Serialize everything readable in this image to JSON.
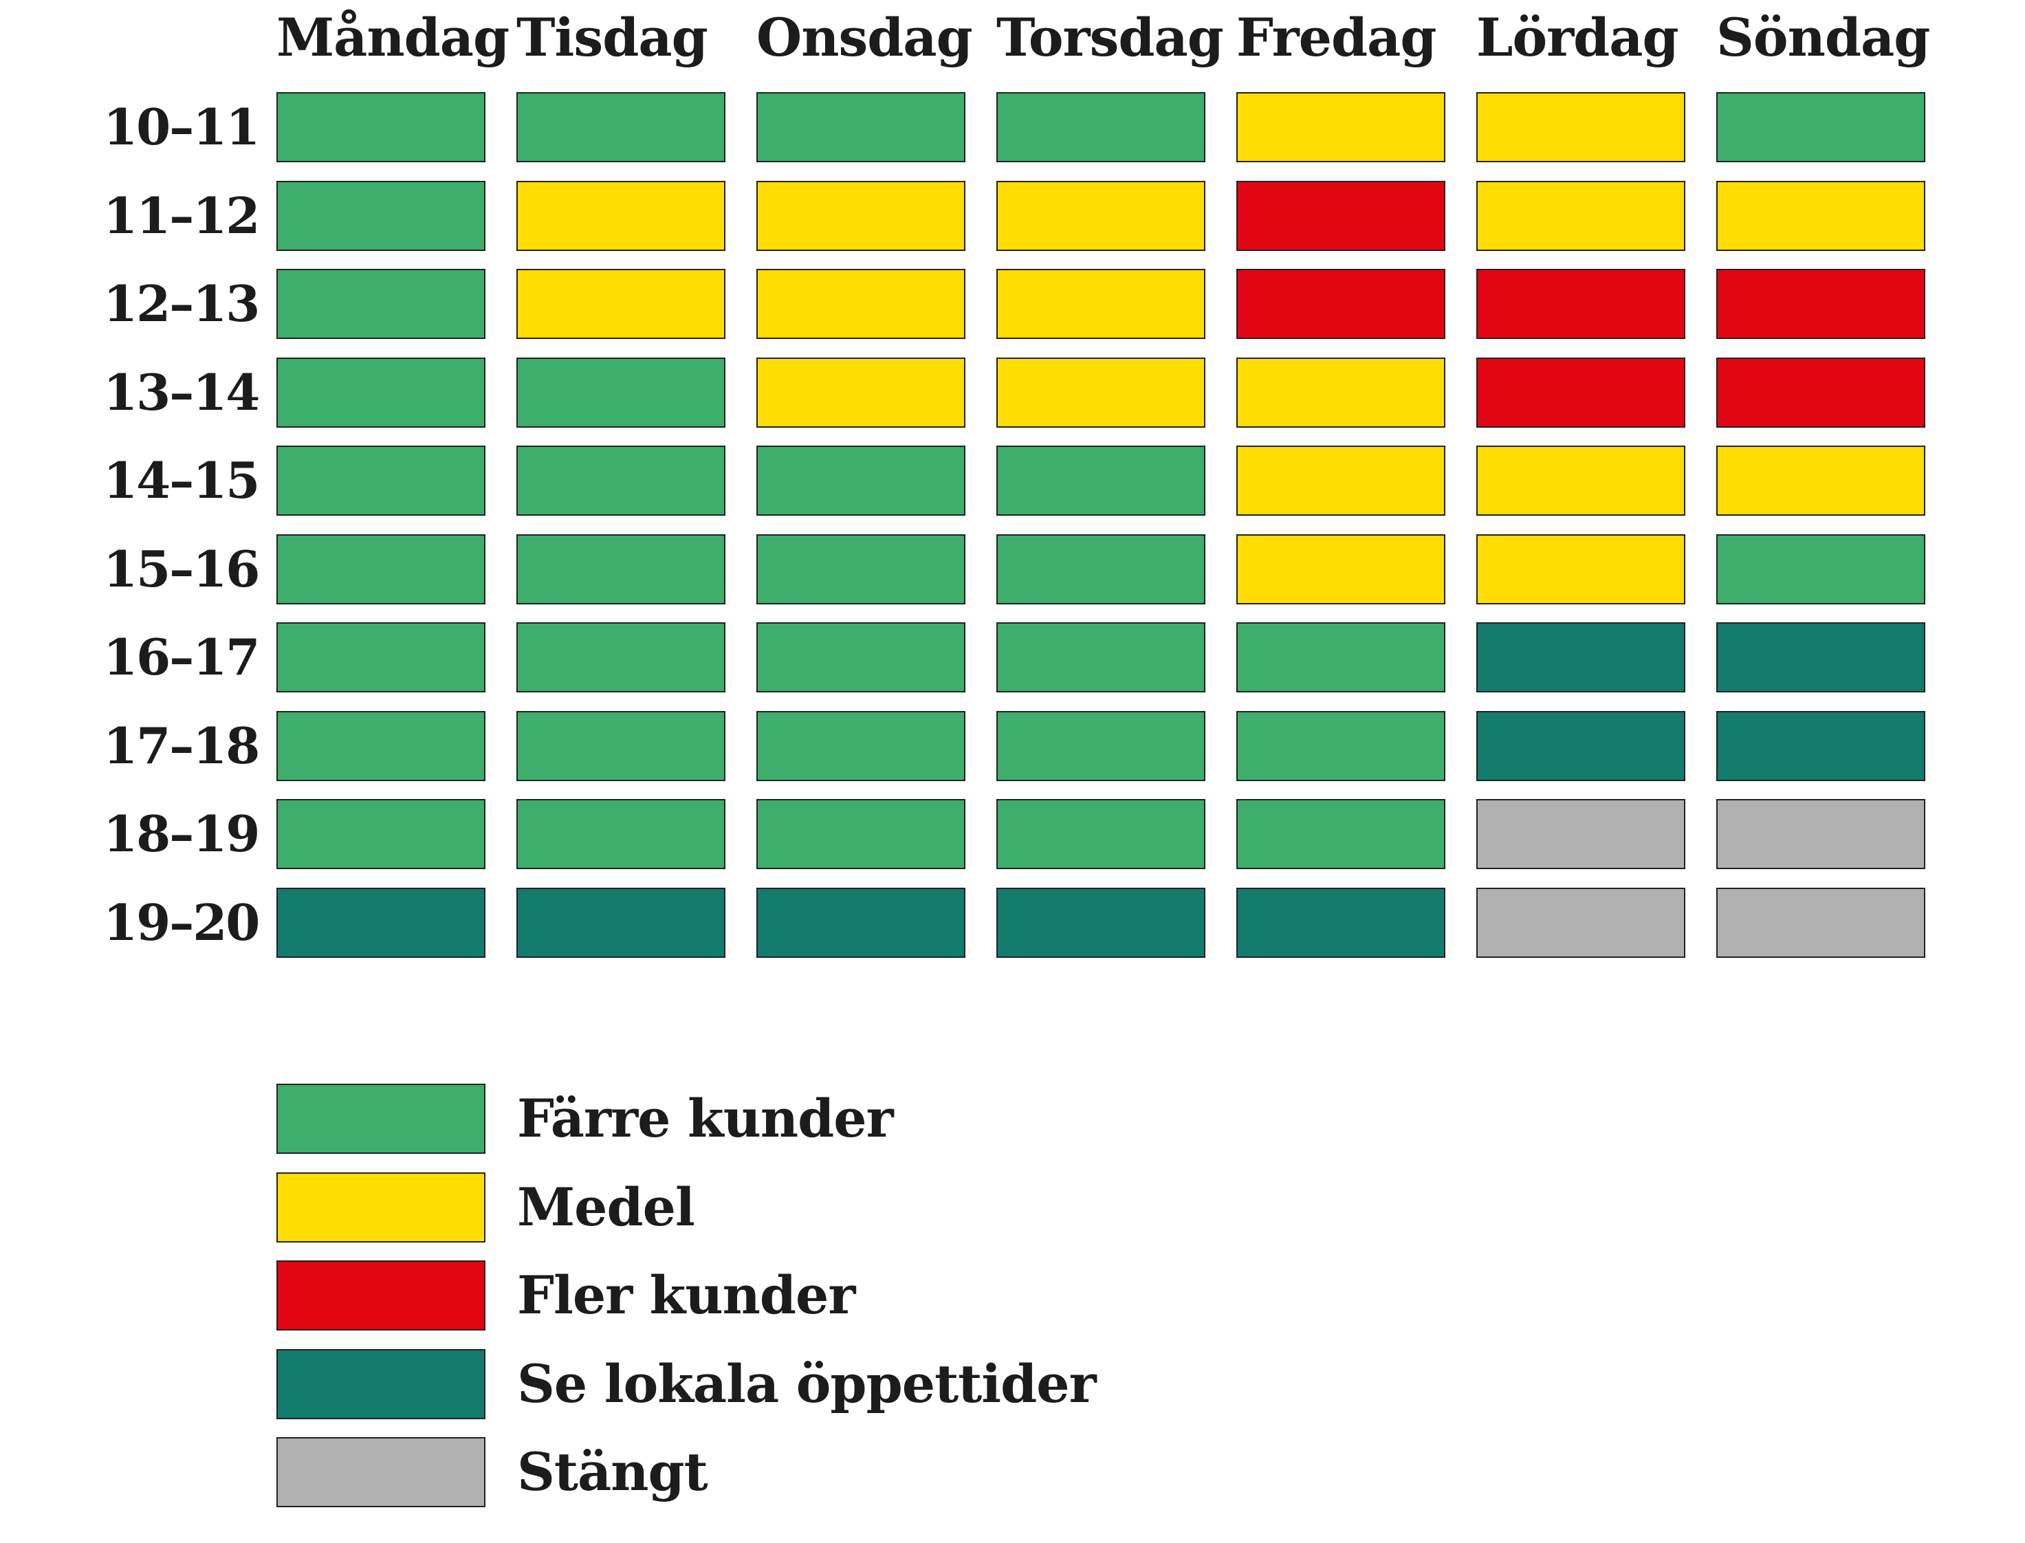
{
  "chart_data": {
    "type": "heatmap",
    "title": "",
    "columns": [
      "Måndag",
      "Tisdag",
      "Onsdag",
      "Torsdag",
      "Fredag",
      "Lördag",
      "Söndag"
    ],
    "rows": [
      "10–11",
      "11–12",
      "12–13",
      "13–14",
      "14–15",
      "15–16",
      "16–17",
      "17–18",
      "18–19",
      "19–20"
    ],
    "categories": [
      {
        "key": "farre",
        "label": "Färre kunder",
        "color": "#3dae6c"
      },
      {
        "key": "medel",
        "label": "Medel",
        "color": "#ffdd00"
      },
      {
        "key": "fler",
        "label": "Fler kunder",
        "color": "#e20613"
      },
      {
        "key": "lokala",
        "label": "Se lokala öppettider",
        "color": "#137c6c"
      },
      {
        "key": "stangt",
        "label": "Stängt",
        "color": "#b2b1b1"
      }
    ],
    "values": [
      [
        "farre",
        "farre",
        "farre",
        "farre",
        "medel",
        "medel",
        "farre"
      ],
      [
        "farre",
        "medel",
        "medel",
        "medel",
        "fler",
        "medel",
        "medel"
      ],
      [
        "farre",
        "medel",
        "medel",
        "medel",
        "fler",
        "fler",
        "fler"
      ],
      [
        "farre",
        "farre",
        "medel",
        "medel",
        "medel",
        "fler",
        "fler"
      ],
      [
        "farre",
        "farre",
        "farre",
        "farre",
        "medel",
        "medel",
        "medel"
      ],
      [
        "farre",
        "farre",
        "farre",
        "farre",
        "medel",
        "medel",
        "farre"
      ],
      [
        "farre",
        "farre",
        "farre",
        "farre",
        "farre",
        "lokala",
        "lokala"
      ],
      [
        "farre",
        "farre",
        "farre",
        "farre",
        "farre",
        "lokala",
        "lokala"
      ],
      [
        "farre",
        "farre",
        "farre",
        "farre",
        "farre",
        "stangt",
        "stangt"
      ],
      [
        "lokala",
        "lokala",
        "lokala",
        "lokala",
        "lokala",
        "stangt",
        "stangt"
      ]
    ]
  }
}
